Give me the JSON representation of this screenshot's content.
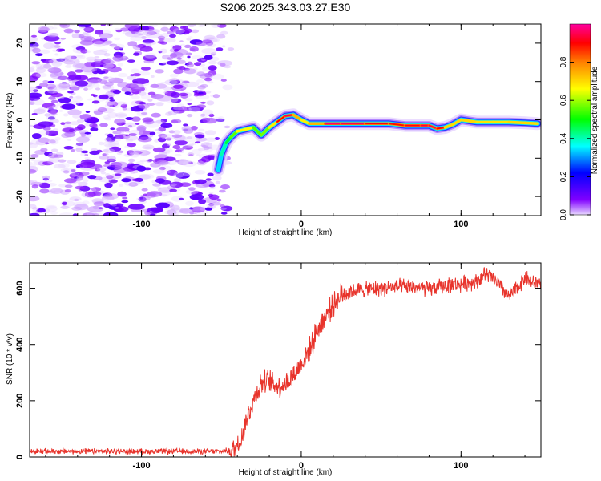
{
  "page": {
    "title": "S206.2025.343.03.27.E30"
  },
  "chart_data": [
    {
      "type": "heatmap",
      "name": "spectrogram",
      "xlabel": "Height of straight line (km)",
      "ylabel": "Frequency (Hz)",
      "xlim": [
        -170,
        150
      ],
      "ylim": [
        -25,
        25
      ],
      "xticks": [
        -100,
        0,
        100
      ],
      "xtick_labels": [
        "-100",
        "0",
        "100"
      ],
      "yticks": [
        -20,
        -10,
        0,
        10,
        20
      ],
      "ytick_labels": [
        "-20",
        "-10",
        "0",
        "10",
        "20"
      ],
      "colormap": [
        "#ff0080",
        "#ff0000",
        "#ff8000",
        "#ffff00",
        "#00ff00",
        "#00ffff",
        "#0000ff",
        "#8000ff",
        "#e0c8ff"
      ],
      "colorbar": {
        "label": "Normalized spectral amplitude",
        "range": [
          0,
          1
        ],
        "ticks": [
          0.0,
          0.2,
          0.4,
          0.6,
          0.8
        ],
        "tick_labels": [
          "0.0",
          "0.2",
          "0.4",
          "0.6",
          "0.8"
        ]
      },
      "noise_region_x": [
        -170,
        -50
      ],
      "ridge": {
        "x": [
          -52,
          -50,
          -47,
          -44,
          -40,
          -35,
          -30,
          -25,
          -20,
          -15,
          -10,
          -5,
          0,
          5,
          15,
          25,
          40,
          55,
          65,
          75,
          80,
          85,
          90,
          95,
          100,
          110,
          120,
          130,
          140,
          148
        ],
        "hz": [
          -13,
          -9,
          -6,
          -4.5,
          -3,
          -2.5,
          -2,
          -4,
          -2,
          -0.5,
          1,
          1.3,
          0,
          -1,
          -1,
          -1,
          -1,
          -1,
          -1.5,
          -1.5,
          -1.5,
          -2.3,
          -2,
          -1.2,
          0,
          -0.6,
          -0.6,
          -0.6,
          -0.8,
          -1
        ],
        "amp": [
          0.35,
          0.45,
          0.5,
          0.6,
          0.72,
          0.85,
          0.7,
          0.6,
          0.75,
          0.85,
          0.95,
          0.95,
          0.8,
          0.8,
          0.95,
          0.98,
          0.92,
          0.9,
          0.88,
          0.95,
          0.93,
          0.96,
          0.85,
          0.8,
          0.85,
          0.8,
          0.82,
          0.8,
          0.85,
          0.8
        ]
      }
    },
    {
      "type": "line",
      "name": "snr",
      "xlabel": "Height of straight line (km)",
      "ylabel": "SNR (10 * v/v)",
      "xlim": [
        -170,
        150
      ],
      "ylim": [
        0,
        690
      ],
      "xticks": [
        -100,
        0,
        100
      ],
      "xtick_labels": [
        "-100",
        "0",
        "100"
      ],
      "yticks": [
        0,
        200,
        400,
        600
      ],
      "ytick_labels": [
        "0",
        "200",
        "400",
        "600"
      ],
      "color": "#e8342c",
      "trend": {
        "x": [
          -170,
          -50,
          -42,
          -38,
          -35,
          -30,
          -25,
          -20,
          -15,
          -10,
          -5,
          0,
          5,
          10,
          15,
          20,
          25,
          30,
          40,
          50,
          60,
          70,
          80,
          90,
          100,
          110,
          115,
          120,
          125,
          130,
          135,
          140,
          145,
          150
        ],
        "y": [
          20,
          20,
          25,
          60,
          120,
          200,
          265,
          270,
          250,
          260,
          290,
          330,
          380,
          450,
          500,
          540,
          575,
          590,
          595,
          600,
          605,
          605,
          595,
          610,
          615,
          625,
          650,
          635,
          605,
          570,
          600,
          640,
          620,
          620
        ]
      }
    }
  ]
}
